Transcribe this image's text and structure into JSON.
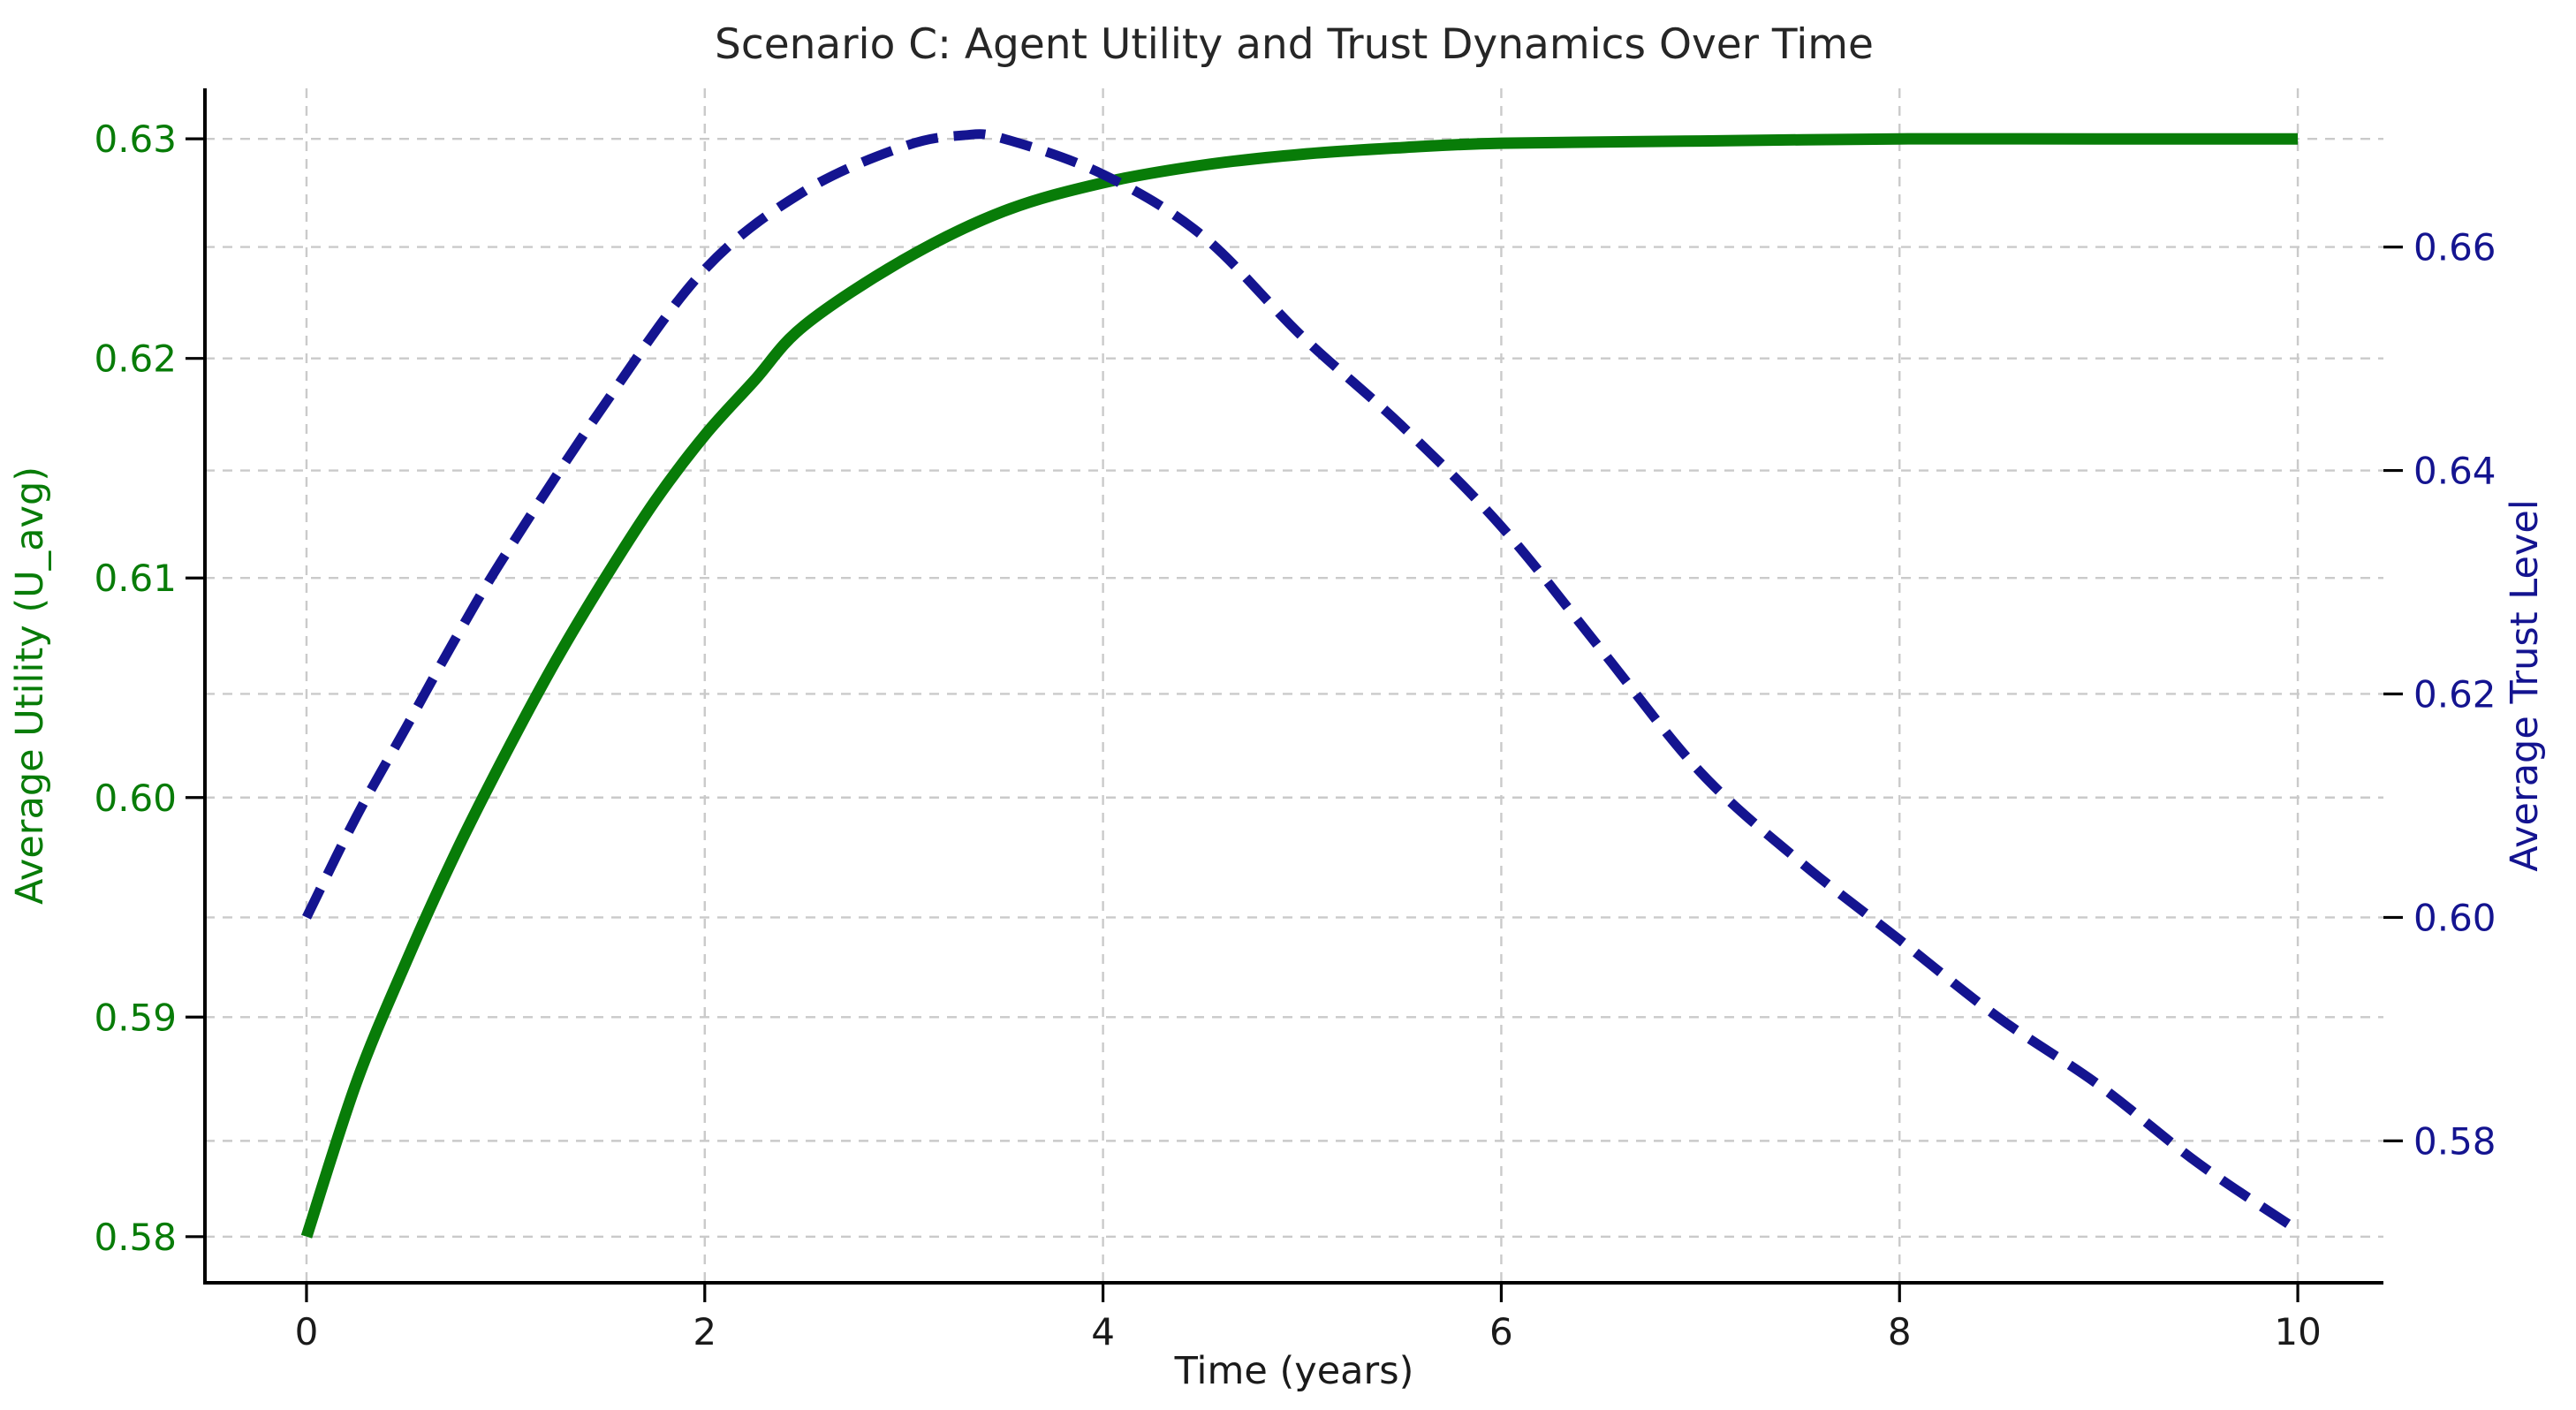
{
  "figure": {
    "background": "#ffffff"
  },
  "chart_data": {
    "type": "line",
    "title": "Scenario C: Agent Utility and Trust Dynamics Over Time",
    "xlabel": "Time (years)",
    "ylabel_left": "Average Utility (U_avg)",
    "ylabel_right": "Average Trust Level",
    "x_ticks": [
      0,
      2,
      4,
      6,
      8,
      10
    ],
    "y_left_ticks": [
      0.58,
      0.59,
      0.6,
      0.61,
      0.62,
      0.63
    ],
    "y_right_ticks": [
      0.58,
      0.6,
      0.62,
      0.64,
      0.66
    ],
    "xlim": [
      -0.51,
      10.43
    ],
    "ylim_left": [
      0.5779,
      0.6323
    ],
    "ylim_right": [
      0.5673,
      0.6742
    ],
    "grid": true,
    "grid_color": "#cacaca",
    "legend": "none",
    "colors": {
      "utility": "#087c08",
      "trust": "#141490",
      "axis_text": "#1a1a1a",
      "spine": "#000000",
      "title": "#262626"
    },
    "series": [
      {
        "name": "Average Utility (U_avg)",
        "axis": "left",
        "style": "solid",
        "color": "#087c08",
        "width": 13,
        "x": [
          0,
          0.25,
          0.5,
          0.75,
          1,
          1.25,
          1.5,
          1.75,
          2,
          2.25,
          2.5,
          3,
          3.5,
          4,
          4.5,
          5,
          5.5,
          6,
          7,
          8,
          9,
          10
        ],
        "y": [
          0.58,
          0.587,
          0.5925,
          0.5975,
          0.602,
          0.6062,
          0.61,
          0.6135,
          0.6165,
          0.619,
          0.6215,
          0.6245,
          0.6267,
          0.628,
          0.6288,
          0.6293,
          0.6296,
          0.6298,
          0.6299,
          0.63,
          0.63,
          0.63
        ]
      },
      {
        "name": "Average Trust Level",
        "axis": "right",
        "style": "dashed",
        "color": "#141490",
        "width": 11,
        "x": [
          0,
          0.25,
          0.5,
          0.75,
          1,
          1.5,
          2,
          2.5,
          3,
          3.3,
          3.5,
          4,
          4.5,
          5,
          5.5,
          6,
          6.5,
          7,
          7.5,
          8,
          8.5,
          9,
          9.5,
          10
        ],
        "y": [
          0.6,
          0.609,
          0.617,
          0.625,
          0.6325,
          0.646,
          0.658,
          0.665,
          0.669,
          0.67,
          0.6697,
          0.6665,
          0.661,
          0.652,
          0.644,
          0.635,
          0.624,
          0.613,
          0.605,
          0.598,
          0.591,
          0.585,
          0.578,
          0.572
        ]
      }
    ]
  }
}
